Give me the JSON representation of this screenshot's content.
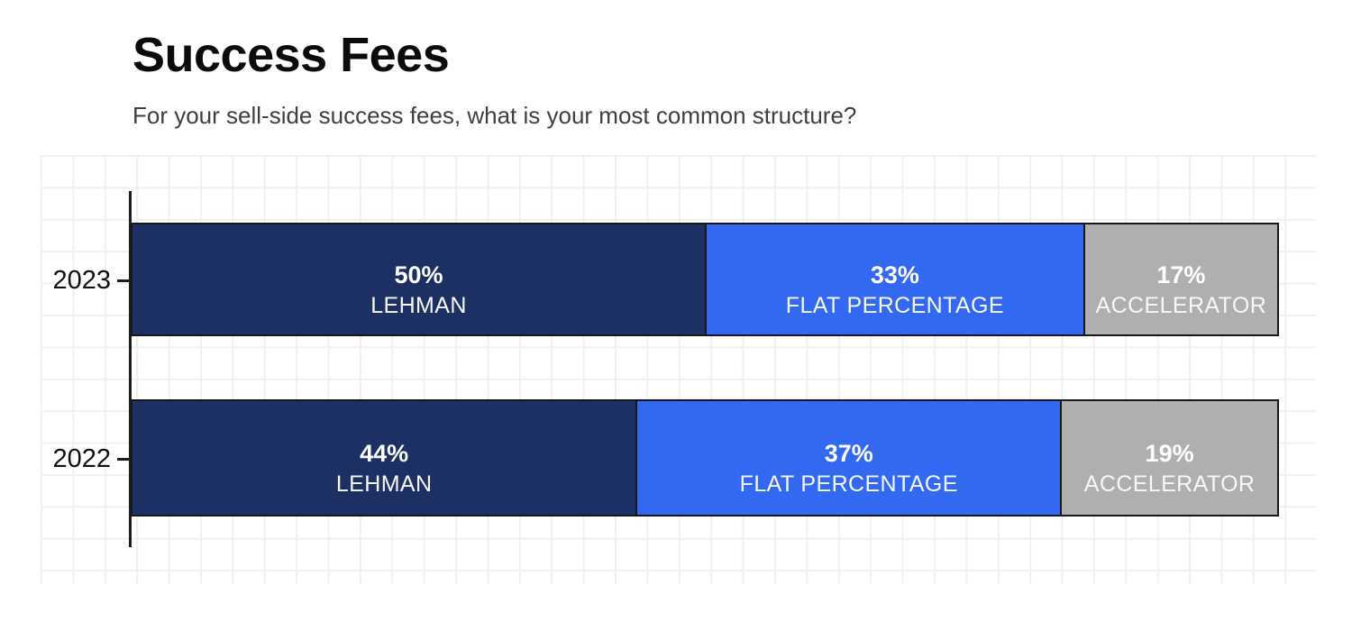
{
  "page": {
    "title": "Success Fees",
    "subtitle": "For your sell-side success fees, what is your most common structure?"
  },
  "colors": {
    "navy": "#1d3063",
    "blue": "#3369f0",
    "gray": "#afafaf",
    "axis": "#1c1c1e",
    "grid_line": "#f0f0f3",
    "bar_border": "#16171a",
    "title_text": "#0b0b0d",
    "subtitle_text": "#3f3f43",
    "bar_text": "#ffffff"
  },
  "left_stripe": {
    "segments": [
      {
        "name": "navy",
        "color": "#1d3063"
      },
      {
        "name": "blue",
        "color": "#3369f0"
      },
      {
        "name": "gray",
        "color": "#afafaf"
      }
    ]
  },
  "chart_data": {
    "type": "bar",
    "orientation": "horizontal-stacked",
    "title": "Success Fees",
    "subtitle": "For your sell-side success fees, what is your most common structure?",
    "categories": [
      "2023",
      "2022"
    ],
    "series": [
      {
        "name": "LEHMAN",
        "values": [
          50,
          44
        ],
        "color": "#1d3063"
      },
      {
        "name": "FLAT PERCENTAGE",
        "values": [
          33,
          37
        ],
        "color": "#3369f0"
      },
      {
        "name": "ACCELERATOR",
        "values": [
          17,
          19
        ],
        "color": "#afafaf"
      }
    ],
    "value_suffix": "%",
    "xlim": [
      0,
      100
    ],
    "grid": true,
    "legend_position": "none",
    "labels_inside_segments": true
  }
}
